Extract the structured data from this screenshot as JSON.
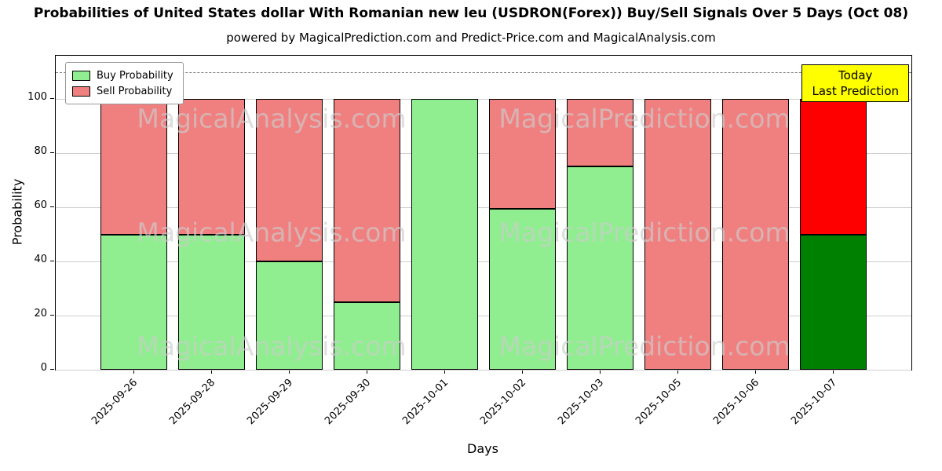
{
  "title": "Probabilities of United States dollar With Romanian new leu (USDRON(Forex)) Buy/Sell Signals Over 5 Days (Oct 08)",
  "subtitle": "powered by MagicalPrediction.com and Predict-Price.com and MagicalAnalysis.com",
  "legend": {
    "buy_label": "Buy Probability",
    "sell_label": "Sell Probability"
  },
  "annotation": {
    "line1": "Today",
    "line2": "Last Prediction"
  },
  "watermarks": {
    "left": "MagicalAnalysis.com",
    "right": "MagicalPrediction.com"
  },
  "colors": {
    "buy": "#90ee90",
    "sell": "#f08080",
    "last_buy": "#008000",
    "last_sell": "#ff0000",
    "annotation_bg": "#ffff00",
    "grid": "#cfcfcf",
    "watermark": "rgba(205,205,205,0.65)"
  },
  "chart_data": {
    "type": "bar",
    "stacked": true,
    "title": "Probabilities of United States dollar With Romanian new leu (USDRON(Forex)) Buy/Sell Signals Over 5 Days (Oct 08)",
    "xlabel": "Days",
    "ylabel": "Probability",
    "categories": [
      "2025-09-26",
      "2025-09-28",
      "2025-09-29",
      "2025-09-30",
      "2025-10-01",
      "2025-10-02",
      "2025-10-03",
      "2025-10-05",
      "2025-10-06",
      "2025-10-07"
    ],
    "series": [
      {
        "name": "Buy Probability",
        "values": [
          50,
          50,
          40,
          25,
          100,
          59.5,
          75,
          0,
          0,
          50
        ]
      },
      {
        "name": "Sell Probability",
        "values": [
          50,
          50,
          60,
          75,
          0,
          40.5,
          25,
          100,
          100,
          50
        ]
      }
    ],
    "yticks": [
      0,
      20,
      40,
      60,
      80,
      100
    ],
    "ylim": [
      0,
      116
    ],
    "dashed_line_y": 110,
    "grid": "horizontal",
    "legend_position": "upper-left",
    "highlight_last_bar": true
  }
}
